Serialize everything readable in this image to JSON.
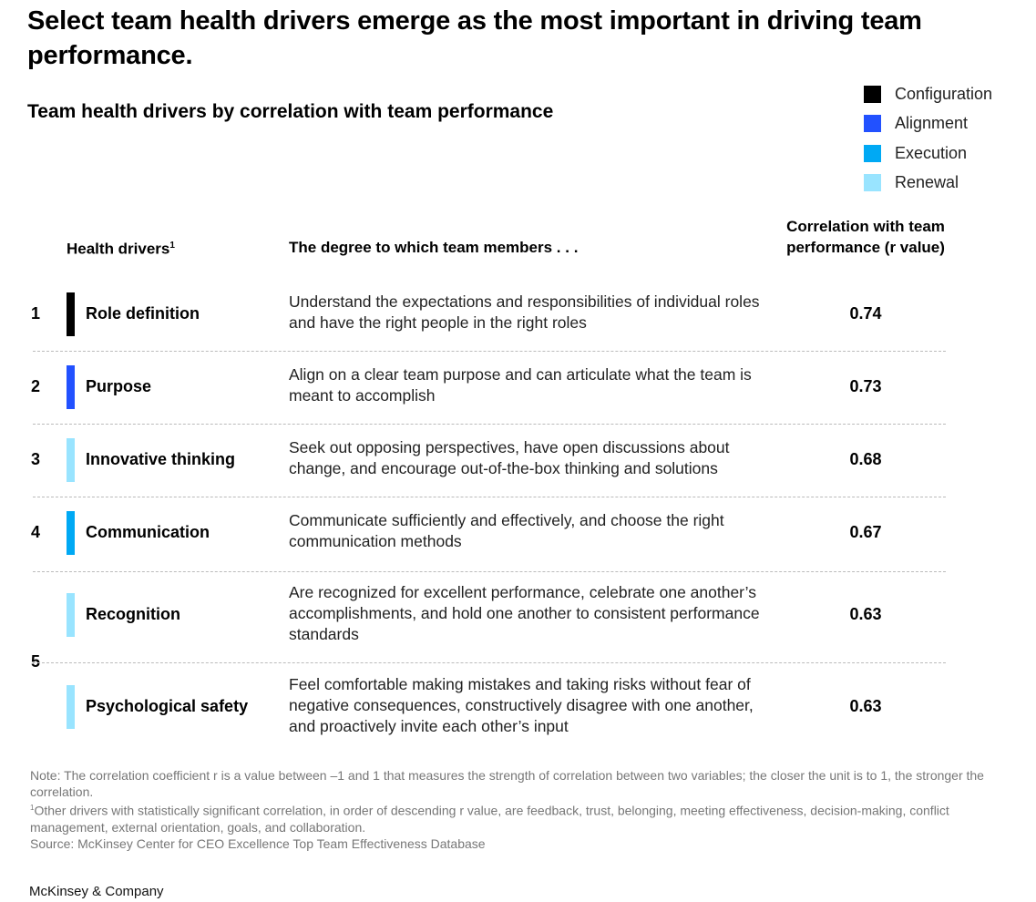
{
  "title": "Select team health drivers emerge as the most important in driving team performance.",
  "subtitle": "Team health drivers by correlation with team performance",
  "legend": [
    {
      "label": "Configuration",
      "color": "#000000"
    },
    {
      "label": "Alignment",
      "color": "#2251ff"
    },
    {
      "label": "Execution",
      "color": "#00a9f4"
    },
    {
      "label": "Renewal",
      "color": "#99e4ff"
    }
  ],
  "headers": {
    "drivers": "Health drivers",
    "drivers_footnote": "1",
    "description": "The degree to which team members . . .",
    "correlation": "Correlation with team performance (r value)"
  },
  "chart_data": {
    "type": "table",
    "columns": [
      "Rank",
      "Health drivers",
      "The degree to which team members . . .",
      "Correlation with team performance (r value)"
    ],
    "rows": [
      {
        "rank": "1",
        "driver": "Role definition",
        "category": "Configuration",
        "description": "Understand the expectations and responsibilities of individual roles and have the right people in the right roles",
        "r": "0.74"
      },
      {
        "rank": "2",
        "driver": "Purpose",
        "category": "Alignment",
        "description": "Align on a clear team purpose and can articulate what the team is meant to accomplish",
        "r": "0.73"
      },
      {
        "rank": "3",
        "driver": "Innovative thinking",
        "category": "Renewal",
        "description": "Seek out opposing perspectives, have open discussions about change, and encourage out-of-the-box thinking and solutions",
        "r": "0.68"
      },
      {
        "rank": "4",
        "driver": "Communication",
        "category": "Execution",
        "description": "Communicate sufficiently and effectively, and choose the right communication methods",
        "r": "0.67"
      },
      {
        "rank": "5",
        "driver": "Recognition",
        "category": "Renewal",
        "description": "Are recognized for excellent performance, celebrate one another’s accomplishments, and hold one another to consistent performance standards",
        "r": "0.63"
      },
      {
        "rank": "5",
        "driver": "Psychological safety",
        "category": "Renewal",
        "description": "Feel comfortable making mistakes and taking risks without fear of negative consequences, constructively disagree with one another, and proactively invite each other’s input",
        "r": "0.63"
      }
    ]
  },
  "notes": {
    "note": "Note: The correlation coefficient r is a value between –1 and 1 that measures the strength of correlation between two variables; the closer the unit is to 1, the stronger the correlation.",
    "footnote_marker": "1",
    "footnote": "Other drivers with statistically significant correlation, in order of descending r value, are feedback, trust, belonging, meeting effectiveness, decision-making, conflict management, external orientation, goals, and collaboration.",
    "source": "Source: McKinsey Center for CEO Excellence Top Team Effectiveness Database"
  },
  "brand": "McKinsey & Company"
}
